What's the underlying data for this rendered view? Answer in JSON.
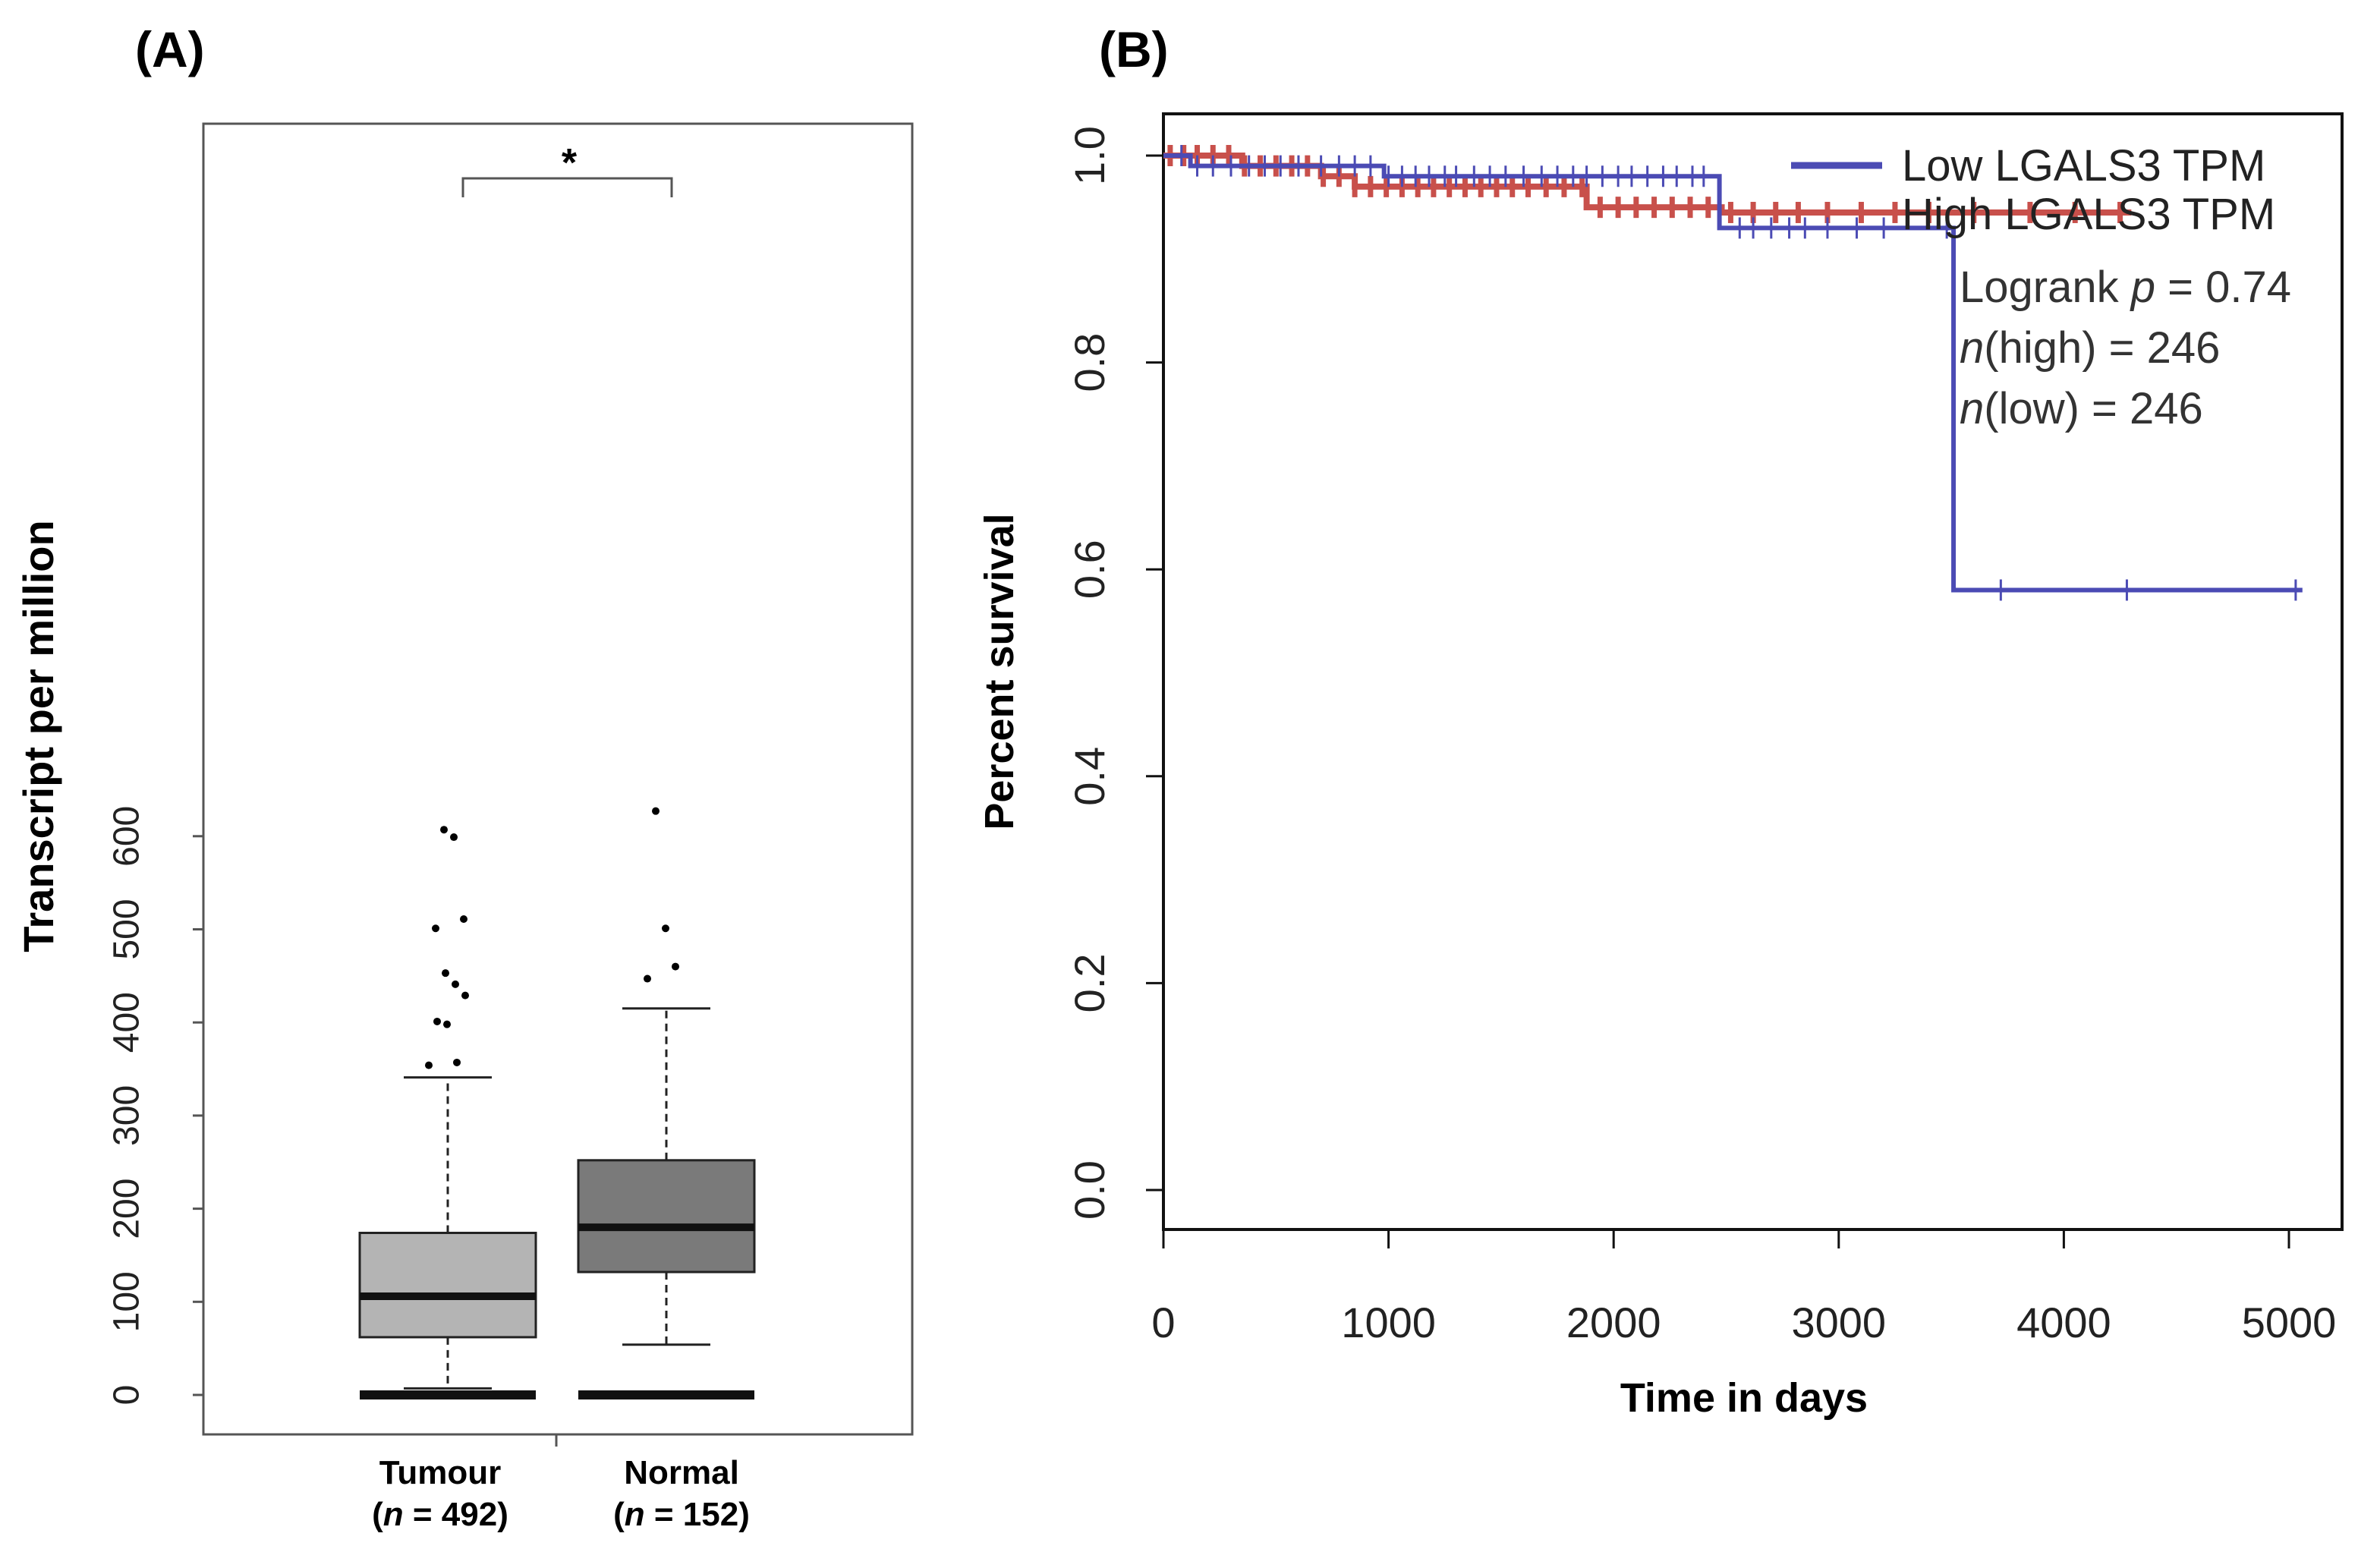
{
  "chart_data": [
    {
      "panel_label": "(A)",
      "type": "box",
      "ylabel": "Transcript per million",
      "ylim": [
        0,
        650
      ],
      "yticks": [
        0,
        100,
        200,
        300,
        400,
        500,
        600
      ],
      "categories": [
        {
          "name": "Tumour",
          "n_text": "(n = 492)",
          "n_prefix": "(",
          "n_italic": "n",
          "n_suffix": " = 492)",
          "n": 492
        },
        {
          "name": "Normal",
          "n_text": "(n = 152)",
          "n_prefix": "(",
          "n_italic": "n",
          "n_suffix": " = 152)",
          "n": 152
        }
      ],
      "boxes": [
        {
          "name": "Tumour",
          "min": 7,
          "q1": 62,
          "median": 106,
          "q3": 174,
          "max": 341,
          "color": "#b4b4b4",
          "outliers": [
            354,
            357,
            398,
            401,
            429,
            441,
            453,
            501,
            511,
            599,
            607
          ]
        },
        {
          "name": "Normal",
          "min": 54,
          "q1": 132,
          "median": 180,
          "q3": 252,
          "max": 415,
          "color": "#7a7a7a",
          "outliers": [
            447,
            460,
            501,
            627
          ]
        }
      ],
      "significance": "*"
    },
    {
      "panel_label": "(B)",
      "type": "line",
      "xlabel": "Time in days",
      "ylabel": "Percent survival",
      "xlim": [
        0,
        5000
      ],
      "ylim": [
        0,
        1
      ],
      "xticks": [
        0,
        1000,
        2000,
        3000,
        4000,
        5000
      ],
      "yticks": [
        0.0,
        0.2,
        0.4,
        0.6,
        0.8,
        1.0
      ],
      "ytick_labels": [
        "0.0",
        "0.2",
        "0.4",
        "0.6",
        "0.8",
        "1.0"
      ],
      "series": [
        {
          "name": "Low LGALS3 TPM",
          "color": "#4b4bb4",
          "x": [
            0,
            120,
            480,
            980,
            1500,
            2460,
            2470,
            3240,
            3500,
            3510,
            5060
          ],
          "y": [
            1.0,
            0.99,
            0.99,
            0.98,
            0.98,
            0.98,
            0.93,
            0.93,
            0.93,
            0.58,
            0.58
          ],
          "censor_x": [
            80,
            150,
            220,
            300,
            380,
            450,
            520,
            600,
            700,
            780,
            850,
            920,
            1000,
            1060,
            1120,
            1180,
            1250,
            1300,
            1380,
            1450,
            1520,
            1600,
            1680,
            1750,
            1820,
            1880,
            1950,
            2020,
            2080,
            2150,
            2220,
            2280,
            2350,
            2400,
            2560,
            2620,
            2700,
            2780,
            2850,
            2950,
            3080,
            3200,
            3480,
            3720,
            4280,
            5030
          ]
        },
        {
          "name": "High LGALS3 TPM",
          "color": "#c8504b",
          "x": [
            0,
            350,
            700,
            850,
            1880,
            2480,
            4300
          ],
          "y": [
            1.0,
            0.99,
            0.98,
            0.97,
            0.95,
            0.945,
            0.945
          ],
          "censor_x": [
            30,
            90,
            150,
            220,
            290,
            360,
            430,
            500,
            570,
            640,
            710,
            780,
            850,
            920,
            990,
            1060,
            1130,
            1200,
            1270,
            1340,
            1410,
            1480,
            1550,
            1620,
            1700,
            1780,
            1860,
            1940,
            2020,
            2100,
            2180,
            2260,
            2340,
            2420,
            2520,
            2620,
            2720,
            2820,
            2950,
            3100,
            3250,
            3400,
            3600,
            3850,
            4050,
            4250
          ]
        }
      ],
      "legend_position": "top-right",
      "annotations": {
        "logrank_prefix": "Logrank ",
        "logrank_p": "p",
        "logrank_value": " = 0.74",
        "n_high_italic": "n",
        "n_high_text": "(high) = 246",
        "n_low_italic": "n",
        "n_low_text": "(low) = 246"
      }
    }
  ]
}
